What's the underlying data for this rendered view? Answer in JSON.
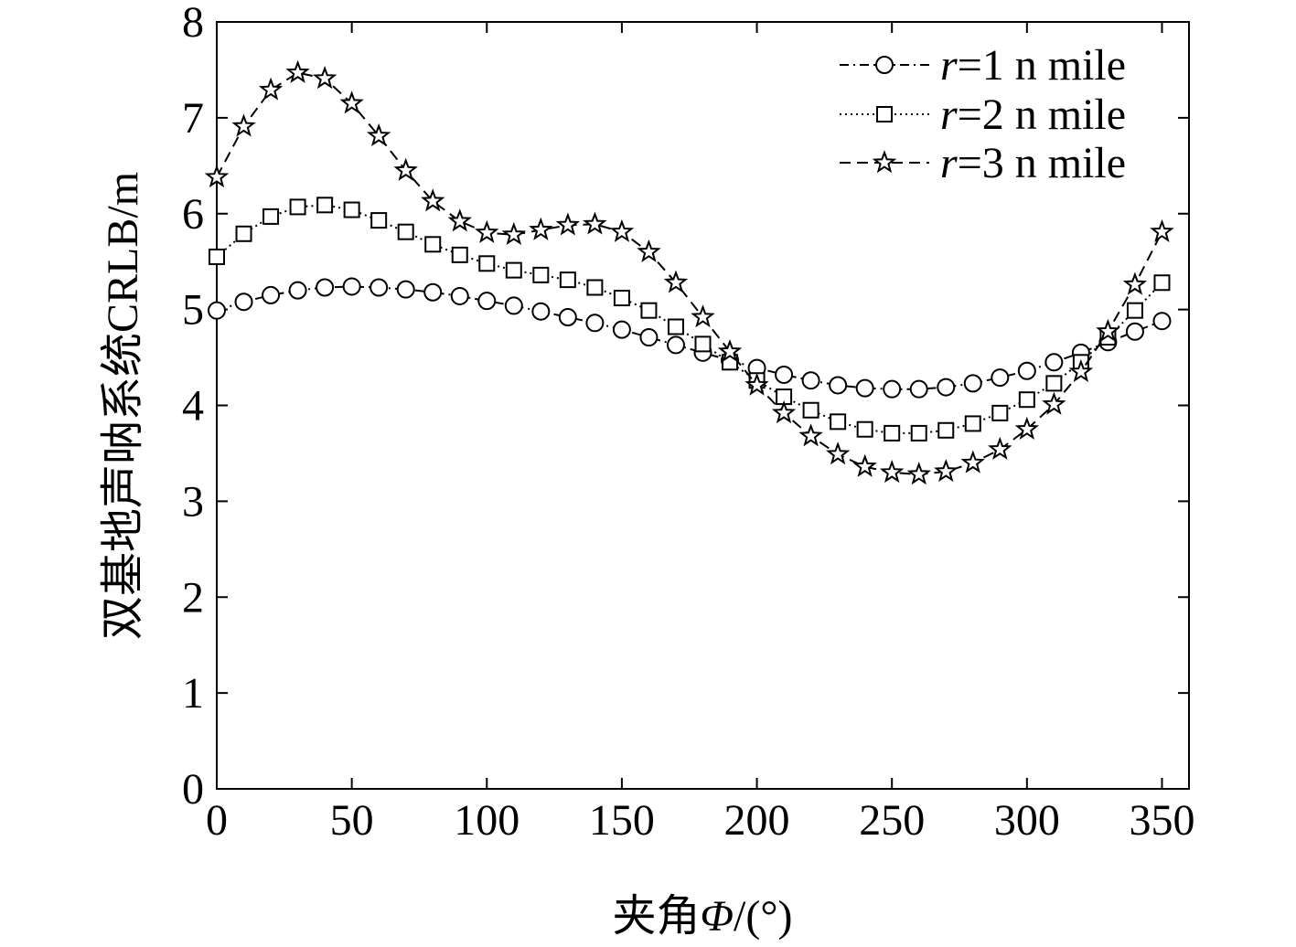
{
  "chart_data": {
    "type": "line",
    "title": "",
    "xlabel_prefix": "夹角",
    "xlabel_symbol": "Φ",
    "xlabel_suffix": "/(°)",
    "ylabel": "双基地声呐系统CRLB/m",
    "xlim": [
      0,
      360
    ],
    "ylim": [
      0,
      8
    ],
    "xticks": [
      0,
      50,
      100,
      150,
      200,
      250,
      300,
      350
    ],
    "yticks": [
      0,
      1,
      2,
      3,
      4,
      5,
      6,
      7,
      8
    ],
    "grid": false,
    "legend_position": "top-right",
    "x": [
      0,
      10,
      20,
      30,
      40,
      50,
      60,
      70,
      80,
      90,
      100,
      110,
      120,
      130,
      140,
      150,
      160,
      170,
      180,
      190,
      200,
      210,
      220,
      230,
      240,
      250,
      260,
      270,
      280,
      290,
      300,
      310,
      320,
      330,
      340,
      350
    ],
    "series": [
      {
        "name": "r=1 n mile",
        "var": "r",
        "label_rest": "=1 n mile",
        "marker": "circle",
        "dash": "dashdot",
        "values": [
          4.99,
          5.08,
          5.15,
          5.2,
          5.23,
          5.24,
          5.23,
          5.21,
          5.18,
          5.14,
          5.09,
          5.04,
          4.98,
          4.92,
          4.86,
          4.79,
          4.71,
          4.63,
          4.55,
          4.47,
          4.39,
          4.32,
          4.26,
          4.21,
          4.18,
          4.17,
          4.17,
          4.19,
          4.23,
          4.29,
          4.36,
          4.45,
          4.55,
          4.66,
          4.77,
          4.88
        ]
      },
      {
        "name": "r=2 n mile",
        "var": "r",
        "label_rest": "=2 n mile",
        "marker": "square",
        "dash": "dotted",
        "values": [
          5.55,
          5.79,
          5.97,
          6.07,
          6.09,
          6.04,
          5.93,
          5.81,
          5.68,
          5.57,
          5.48,
          5.41,
          5.36,
          5.31,
          5.23,
          5.12,
          4.99,
          4.82,
          4.64,
          4.45,
          4.26,
          4.09,
          3.95,
          3.83,
          3.75,
          3.71,
          3.71,
          3.74,
          3.81,
          3.92,
          4.06,
          4.23,
          4.45,
          4.71,
          4.99,
          5.28
        ]
      },
      {
        "name": "r=3 n mile",
        "var": "r",
        "label_rest": "=3 n mile",
        "marker": "star",
        "dash": "dashed",
        "values": [
          6.38,
          6.91,
          7.29,
          7.47,
          7.41,
          7.15,
          6.81,
          6.45,
          6.13,
          5.92,
          5.8,
          5.78,
          5.83,
          5.88,
          5.89,
          5.81,
          5.6,
          5.28,
          4.92,
          4.56,
          4.21,
          3.92,
          3.68,
          3.49,
          3.36,
          3.3,
          3.28,
          3.31,
          3.4,
          3.54,
          3.75,
          4.01,
          4.35,
          4.77,
          5.26,
          5.81
        ]
      }
    ]
  }
}
